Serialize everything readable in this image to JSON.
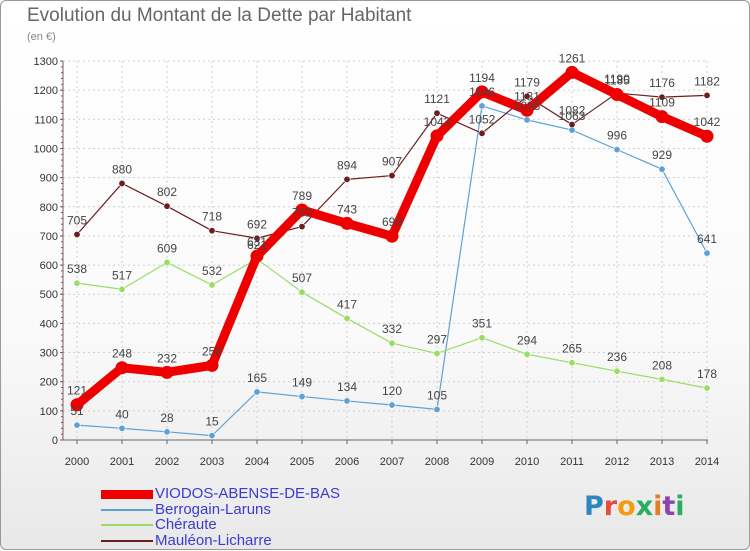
{
  "title": "Evolution du Montant de la Dette par Habitant",
  "subtitle": "(en €)",
  "logo": {
    "text": "Proxiti",
    "letters": [
      {
        "ch": "P",
        "color": "#2e86c1"
      },
      {
        "ch": "r",
        "color": "#e74c3c"
      },
      {
        "ch": "o",
        "color": "#f39c12"
      },
      {
        "ch": "x",
        "color": "#27ae60"
      },
      {
        "ch": "i",
        "color": "#e67e22"
      },
      {
        "ch": "t",
        "color": "#8e44ad"
      },
      {
        "ch": "i",
        "color": "#27ae60"
      }
    ]
  },
  "chart_data": {
    "type": "line",
    "x": [
      "2000",
      "2001",
      "2002",
      "2003",
      "2004",
      "2005",
      "2006",
      "2007",
      "2008",
      "2009",
      "2010",
      "2011",
      "2012",
      "2013",
      "2014"
    ],
    "ylim": [
      0,
      1300
    ],
    "yticks": [
      "0",
      "100",
      "200",
      "300",
      "400",
      "500",
      "600",
      "700",
      "800",
      "900",
      "1000",
      "1100",
      "1200",
      "1300"
    ],
    "grid": true,
    "legend_position": "bottom-left",
    "series": [
      {
        "name": "VIODOS-ABENSE-DE-BAS",
        "color": "#ee0000",
        "emphasis": true,
        "values": [
          121,
          248,
          232,
          256,
          631,
          789,
          743,
          699,
          1043,
          1194,
          1131,
          1261,
          1185,
          1109,
          1042
        ],
        "labels": [
          "121",
          "248",
          "232",
          "256",
          "631",
          "789",
          "743",
          "699",
          "1043",
          "1194",
          "1131",
          "1261",
          "1185",
          "1109",
          "1042"
        ]
      },
      {
        "name": "Berrogain-Laruns",
        "color": "#5ea1d6",
        "emphasis": false,
        "values": [
          51,
          40,
          28,
          15,
          165,
          149,
          134,
          120,
          105,
          1146,
          1098,
          1063,
          996,
          929,
          641
        ],
        "labels": [
          "51",
          "40",
          "28",
          "15",
          "165",
          "149",
          "134",
          "120",
          "105",
          "1146",
          "1098",
          "1063",
          "996",
          "929",
          "641"
        ]
      },
      {
        "name": "Chéraute",
        "color": "#99dd66",
        "emphasis": false,
        "values": [
          538,
          517,
          609,
          532,
          621,
          507,
          417,
          332,
          297,
          351,
          294,
          265,
          236,
          208,
          178
        ],
        "labels": [
          "538",
          "517",
          "609",
          "532",
          "621",
          "507",
          "417",
          "332",
          "297",
          "351",
          "294",
          "265",
          "236",
          "208",
          "178"
        ]
      },
      {
        "name": "Mauléon-Licharre",
        "color": "#6b1e1e",
        "emphasis": false,
        "values": [
          705,
          880,
          802,
          718,
          692,
          732,
          894,
          907,
          1121,
          1052,
          1179,
          1082,
          1190,
          1176,
          1182
        ],
        "labels": [
          "705",
          "880",
          "802",
          "718",
          "692",
          "732",
          "894",
          "907",
          "1121",
          "1052",
          "1179",
          "1082",
          "1190",
          "1176",
          "1182"
        ]
      }
    ]
  }
}
